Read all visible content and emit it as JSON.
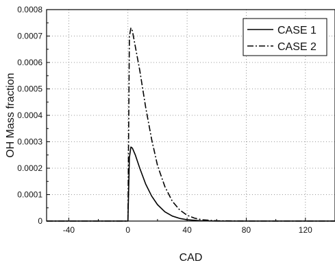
{
  "chart_data": {
    "type": "line",
    "title": "",
    "xlabel": "CAD",
    "ylabel": "OH Mass fraction",
    "xlim": [
      -55,
      140
    ],
    "ylim": [
      0,
      0.0008
    ],
    "xticks": [
      -40,
      0,
      40,
      80,
      120
    ],
    "xtick_labels": [
      "-40",
      "0",
      "40",
      "80",
      "120"
    ],
    "yticks": [
      0,
      0.0001,
      0.0002,
      0.0003,
      0.0004,
      0.0005,
      0.0006,
      0.0007,
      0.0008
    ],
    "ytick_labels": [
      "0",
      "0.0001",
      "0.0002",
      "0.0003",
      "0.0004",
      "0.0005",
      "0.0006",
      "0.0007",
      "0.0008"
    ],
    "grid": true,
    "legend_position": "top-right",
    "series": [
      {
        "name": "CASE 1",
        "line_style": "solid",
        "color": "#000000",
        "x": [
          -55,
          0,
          1,
          2,
          3,
          5,
          8,
          12,
          16,
          20,
          25,
          30,
          35,
          40,
          50,
          60,
          80,
          100,
          120,
          140
        ],
        "y": [
          0,
          0,
          0.00024,
          0.00028,
          0.000276,
          0.00025,
          0.0002,
          0.00014,
          9.5e-05,
          6.2e-05,
          3.5e-05,
          1.9e-05,
          1e-05,
          5e-06,
          1e-06,
          0,
          0,
          0,
          0,
          0
        ]
      },
      {
        "name": "CASE 2",
        "line_style": "dash-dot",
        "color": "#000000",
        "x": [
          -55,
          0,
          1,
          2,
          3,
          5,
          8,
          12,
          16,
          20,
          25,
          30,
          35,
          40,
          45,
          50,
          60,
          80,
          100,
          120,
          140
        ],
        "y": [
          0,
          0,
          0.0007,
          0.00073,
          0.00072,
          0.00066,
          0.00057,
          0.00043,
          0.00031,
          0.00021,
          0.00013,
          7.5e-05,
          4.2e-05,
          2.2e-05,
          1.1e-05,
          5e-06,
          1e-06,
          0,
          0,
          0,
          0
        ]
      }
    ]
  }
}
